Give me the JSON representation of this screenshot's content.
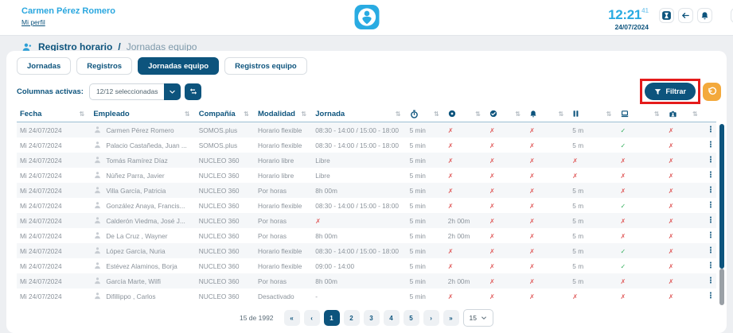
{
  "topbar": {
    "user_name": "Carmen Pérez Romero",
    "profile_link": "Mi perfil",
    "time": "12:21",
    "seconds": "41",
    "date": "24/07/2024"
  },
  "breadcrumb": {
    "section": "Registro horario",
    "separator": "/",
    "current": "Jornadas equipo"
  },
  "tabs": [
    {
      "label": "Jornadas",
      "active": false
    },
    {
      "label": "Registros",
      "active": false
    },
    {
      "label": "Jornadas equipo",
      "active": true
    },
    {
      "label": "Registros equipo",
      "active": false
    }
  ],
  "columns_bar": {
    "label": "Columnas activas:",
    "selected_value": "12/12 seleccionadas"
  },
  "filter": {
    "button_label": "Filtrar"
  },
  "table": {
    "headers": {
      "fecha": "Fecha",
      "empleado": "Empleado",
      "compania": "Compañía",
      "modalidad": "Modalidad",
      "jornada": "Jornada"
    },
    "icon_columns": [
      "stopwatch-icon",
      "circle-dot-icon",
      "check-circle-icon",
      "bell-icon",
      "pause-icon",
      "laptop-icon",
      "briefcase-user-icon"
    ],
    "rows": [
      {
        "date": "Mi 24/07/2024",
        "employee": "Carmen Pérez Romero",
        "company": "SOMOS.plus",
        "modality": "Horario flexible",
        "schedule": "08:30 - 14:00 / 15:00 - 18:00",
        "cells": [
          "5 min",
          "x",
          "x",
          "x",
          "5 m",
          "check",
          "x"
        ]
      },
      {
        "date": "Mi 24/07/2024",
        "employee": "Palacio Castañeda, Juan ...",
        "company": "SOMOS.plus",
        "modality": "Horario flexible",
        "schedule": "08:30 - 14:00 / 15:00 - 18:00",
        "cells": [
          "5 min",
          "x",
          "x",
          "x",
          "5 m",
          "check",
          "x"
        ]
      },
      {
        "date": "Mi 24/07/2024",
        "employee": "Tomás Ramírez Díaz",
        "company": "NUCLEO 360",
        "modality": "Horario libre",
        "schedule": "Libre",
        "cells": [
          "5 min",
          "x",
          "x",
          "x",
          "x",
          "x",
          "x"
        ]
      },
      {
        "date": "Mi 24/07/2024",
        "employee": "Núñez Parra, Javier",
        "company": "NUCLEO 360",
        "modality": "Horario libre",
        "schedule": "Libre",
        "cells": [
          "5 min",
          "x",
          "x",
          "x",
          "x",
          "x",
          "x"
        ]
      },
      {
        "date": "Mi 24/07/2024",
        "employee": "Villa García, Patricia",
        "company": "NUCLEO 360",
        "modality": "Por horas",
        "schedule": "8h 00m",
        "cells": [
          "5 min",
          "x",
          "x",
          "x",
          "5 m",
          "x",
          "x"
        ]
      },
      {
        "date": "Mi 24/07/2024",
        "employee": "González Anaya, Francis...",
        "company": "NUCLEO 360",
        "modality": "Horario flexible",
        "schedule": "08:30 - 14:00 / 15:00 - 18:00",
        "cells": [
          "5 min",
          "x",
          "x",
          "x",
          "5 m",
          "check",
          "x"
        ]
      },
      {
        "date": "Mi 24/07/2024",
        "employee": "Calderón Viedma, José J...",
        "company": "NUCLEO 360",
        "modality": "Por horas",
        "schedule": "x",
        "cells": [
          "5 min",
          "2h 00m",
          "x",
          "x",
          "5 m",
          "x",
          "x"
        ]
      },
      {
        "date": "Mi 24/07/2024",
        "employee": "De La Cruz , Wayner",
        "company": "NUCLEO 360",
        "modality": "Por horas",
        "schedule": "8h 00m",
        "cells": [
          "5 min",
          "2h 00m",
          "x",
          "x",
          "5 m",
          "x",
          "x"
        ]
      },
      {
        "date": "Mi 24/07/2024",
        "employee": "López García, Nuria",
        "company": "NUCLEO 360",
        "modality": "Horario flexible",
        "schedule": "08:30 - 14:00 / 15:00 - 18:00",
        "cells": [
          "5 min",
          "x",
          "x",
          "x",
          "5 m",
          "check",
          "x"
        ]
      },
      {
        "date": "Mi 24/07/2024",
        "employee": "Estévez Alaminos, Borja",
        "company": "NUCLEO 360",
        "modality": "Horario flexible",
        "schedule": "09:00 - 14:00",
        "cells": [
          "5 min",
          "x",
          "x",
          "x",
          "5 m",
          "check",
          "x"
        ]
      },
      {
        "date": "Mi 24/07/2024",
        "employee": "García Marte, Wilfi",
        "company": "NUCLEO 360",
        "modality": "Por horas",
        "schedule": "8h 00m",
        "cells": [
          "5 min",
          "2h 00m",
          "x",
          "x",
          "5 m",
          "x",
          "x"
        ]
      },
      {
        "date": "Mi 24/07/2024",
        "employee": "Difillippo , Carlos",
        "company": "NUCLEO 360",
        "modality": "Desactivado",
        "schedule": "-",
        "cells": [
          "5 min",
          "x",
          "x",
          "x",
          "x",
          "x",
          "x"
        ]
      }
    ]
  },
  "pagination": {
    "summary": "15 de 1992",
    "first": "«",
    "prev": "‹",
    "pages": [
      "1",
      "2",
      "3",
      "4",
      "5"
    ],
    "active_page": "1",
    "next": "›",
    "last": "»",
    "page_size": "15"
  },
  "colors": {
    "navy": "#0d547d",
    "accent_blue": "#29abe2",
    "orange": "#f3a93c",
    "red_cross": "#e05a5a",
    "green_check": "#33ae5c",
    "annotation_red": "#e41b1b"
  }
}
